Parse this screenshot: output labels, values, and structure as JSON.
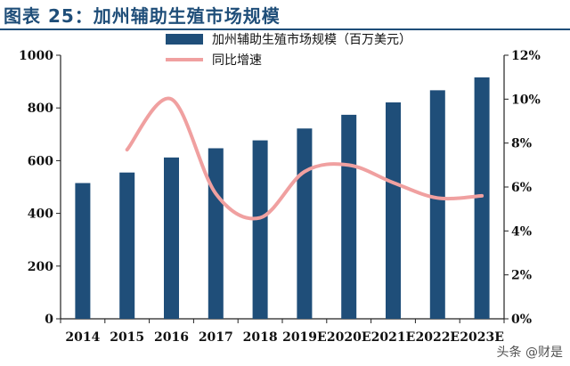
{
  "figure_title": "图表 25：加州辅助生殖市场规模",
  "watermark": "头条 @财是",
  "colors": {
    "bar": "#1f4e79",
    "line": "#f0a0a0",
    "title": "#1f4e79",
    "axis": "#222222"
  },
  "chart_data": {
    "type": "bar",
    "categories": [
      "2014",
      "2015",
      "2016",
      "2017",
      "2018",
      "2019E",
      "2020E",
      "2021E",
      "2022E",
      "2023E"
    ],
    "series": [
      {
        "name": "加州辅助生殖市场规模（百万美元）",
        "type": "bar",
        "axis": "left",
        "values": [
          515,
          555,
          612,
          647,
          677,
          722,
          774,
          821,
          867,
          916
        ]
      },
      {
        "name": "同比增速",
        "type": "line",
        "axis": "right",
        "smooth": true,
        "values": [
          null,
          7.7,
          10.0,
          5.7,
          4.6,
          6.7,
          7.0,
          6.2,
          5.5,
          5.6
        ]
      }
    ],
    "y_left": {
      "min": 0,
      "max": 1000,
      "ticks": [
        "0",
        "200",
        "400",
        "600",
        "800",
        "1000"
      ]
    },
    "y_right": {
      "min": 0,
      "max": 12,
      "ticks": [
        "0%",
        "2%",
        "4%",
        "6%",
        "8%",
        "10%",
        "12%"
      ]
    },
    "legend_position": "top-center",
    "grid": false
  }
}
